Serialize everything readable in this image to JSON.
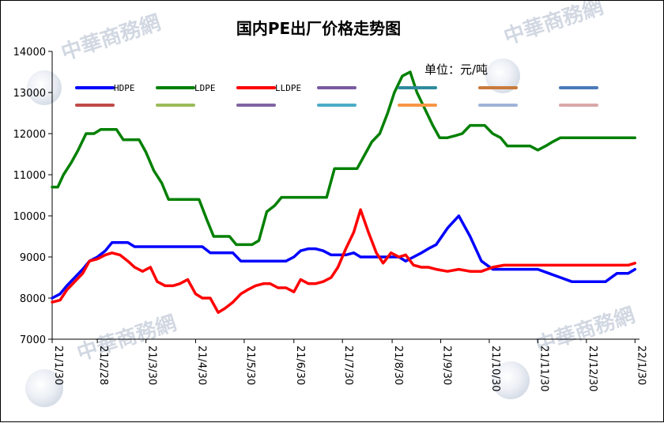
{
  "chart_data": {
    "type": "line",
    "title": "国内PE出厂价格走势图",
    "unit_label": "单位：元/吨",
    "ylim": [
      7000,
      14000
    ],
    "yticks": [
      7000,
      8000,
      9000,
      10000,
      11000,
      12000,
      13000,
      14000
    ],
    "xlim": [
      0,
      52
    ],
    "x_tick_labels": [
      {
        "label": "21/1/30",
        "x": 0
      },
      {
        "label": "21/2/28",
        "x": 4
      },
      {
        "label": "21/3/30",
        "x": 8.3
      },
      {
        "label": "21/4/30",
        "x": 12.7
      },
      {
        "label": "21/5/30",
        "x": 17
      },
      {
        "label": "21/6/30",
        "x": 21.4
      },
      {
        "label": "21/7/30",
        "x": 25.7
      },
      {
        "label": "21/8/30",
        "x": 30.1
      },
      {
        "label": "21/9/30",
        "x": 34.4
      },
      {
        "label": "21/10/30",
        "x": 38.7
      },
      {
        "label": "21/11/30",
        "x": 43
      },
      {
        "label": "21/12/30",
        "x": 47.3
      },
      {
        "label": "22/1/30",
        "x": 51.6
      }
    ],
    "grid": false,
    "legend_position": "top",
    "series": [
      {
        "name": "HDPE",
        "color": "#0000ff",
        "x": [
          0,
          0.7,
          1.3,
          2,
          2.7,
          3.3,
          4,
          4.7,
          5.3,
          6,
          6.7,
          7.3,
          8,
          8.7,
          9.3,
          10,
          10.7,
          11.3,
          12,
          12.7,
          13.3,
          14,
          14.7,
          15.3,
          16,
          16.7,
          17.3,
          18,
          18.7,
          19.3,
          20,
          20.7,
          21.4,
          22,
          22.7,
          23.3,
          24,
          24.7,
          25.3,
          26,
          26.7,
          27.3,
          28,
          28.7,
          29.3,
          30,
          30.7,
          31.3,
          32,
          32.7,
          33.3,
          34,
          35,
          36,
          37,
          38,
          39,
          40,
          41,
          42,
          43,
          44,
          45,
          46,
          47,
          48,
          49,
          50,
          51,
          51.6
        ],
        "y": [
          8000,
          8100,
          8300,
          8500,
          8700,
          8900,
          9000,
          9150,
          9350,
          9350,
          9350,
          9250,
          9250,
          9250,
          9250,
          9250,
          9250,
          9250,
          9250,
          9250,
          9250,
          9100,
          9100,
          9100,
          9100,
          8900,
          8900,
          8900,
          8900,
          8900,
          8900,
          8900,
          9000,
          9150,
          9200,
          9200,
          9150,
          9050,
          9050,
          9050,
          9100,
          9000,
          9000,
          9000,
          9000,
          9000,
          9000,
          8900,
          9000,
          9100,
          9200,
          9300,
          9700,
          10000,
          9500,
          8900,
          8700,
          8700,
          8700,
          8700,
          8700,
          8600,
          8500,
          8400,
          8400,
          8400,
          8400,
          8600,
          8600,
          8700
        ]
      },
      {
        "name": "LDPE",
        "color": "#008000",
        "x": [
          0,
          0.5,
          1,
          1.7,
          2.3,
          3,
          3.7,
          4.3,
          5,
          5.7,
          6.3,
          7,
          7.7,
          8.3,
          9,
          9.7,
          10.3,
          11,
          11.7,
          12.3,
          13,
          13.7,
          14.3,
          15,
          15.7,
          16.3,
          17,
          17.7,
          18.3,
          19,
          19.7,
          20.3,
          21,
          21.6,
          22.2,
          23,
          23.7,
          24.3,
          25,
          25.7,
          26.3,
          27,
          27.7,
          28.3,
          29,
          29.7,
          30.3,
          31,
          31.7,
          32.3,
          33,
          33.7,
          34.3,
          35,
          35.7,
          36.3,
          37,
          37.7,
          38.3,
          39,
          39.7,
          40.3,
          41,
          41.7,
          42.3,
          43,
          43.7,
          44.3,
          45,
          45.7,
          46.3,
          47,
          47.7,
          48.3,
          49,
          49.7,
          50.3,
          51,
          51.6
        ],
        "y": [
          10700,
          10700,
          11000,
          11300,
          11600,
          12000,
          12000,
          12100,
          12100,
          12100,
          11850,
          11850,
          11850,
          11550,
          11100,
          10800,
          10400,
          10400,
          10400,
          10400,
          10400,
          9900,
          9500,
          9500,
          9500,
          9300,
          9300,
          9300,
          9400,
          10100,
          10250,
          10450,
          10450,
          10450,
          10450,
          10450,
          10450,
          10450,
          11150,
          11150,
          11150,
          11150,
          11500,
          11800,
          12000,
          12500,
          13000,
          13400,
          13500,
          13000,
          12600,
          12200,
          11900,
          11900,
          11950,
          12000,
          12200,
          12200,
          12200,
          12000,
          11900,
          11700,
          11700,
          11700,
          11700,
          11600,
          11700,
          11800,
          11900,
          11900,
          11900,
          11900,
          11900,
          11900,
          11900,
          11900,
          11900,
          11900,
          11900
        ]
      },
      {
        "name": "LLDPE",
        "color": "#ff0000",
        "x": [
          0,
          0.7,
          1.3,
          2,
          2.7,
          3.3,
          4,
          4.7,
          5.3,
          6,
          6.7,
          7.3,
          8,
          8.7,
          9.3,
          10,
          10.7,
          11.3,
          12,
          12.7,
          13.3,
          14,
          14.7,
          15.3,
          16,
          16.7,
          17.3,
          18,
          18.7,
          19.3,
          20,
          20.7,
          21.4,
          22,
          22.7,
          23.3,
          24,
          24.7,
          25.3,
          26,
          26.7,
          27.3,
          28,
          28.7,
          29.3,
          30,
          30.7,
          31.3,
          32,
          32.7,
          33.3,
          34,
          35,
          36,
          37,
          38,
          39,
          40,
          41,
          42,
          43,
          44,
          45,
          46,
          47,
          48,
          49,
          50,
          51,
          51.6
        ],
        "y": [
          7900,
          7950,
          8200,
          8400,
          8600,
          8900,
          8950,
          9050,
          9100,
          9050,
          8900,
          8750,
          8650,
          8750,
          8400,
          8300,
          8300,
          8350,
          8450,
          8100,
          8000,
          8000,
          7650,
          7750,
          7900,
          8100,
          8200,
          8300,
          8350,
          8350,
          8250,
          8250,
          8150,
          8450,
          8350,
          8350,
          8400,
          8500,
          8750,
          9200,
          9600,
          10150,
          9600,
          9100,
          8850,
          9100,
          9000,
          9050,
          8800,
          8750,
          8750,
          8700,
          8650,
          8700,
          8650,
          8650,
          8750,
          8800,
          8800,
          8800,
          8800,
          8800,
          8800,
          8800,
          8800,
          8800,
          8800,
          8800,
          8800,
          8850
        ]
      }
    ],
    "legend": [
      {
        "name": "HDPE",
        "color": "#0000ff"
      },
      {
        "name": "LDPE",
        "color": "#008000"
      },
      {
        "name": "LLDPE",
        "color": "#ff0000"
      },
      {
        "name": "",
        "color": "#7a5aa0"
      },
      {
        "name": "",
        "color": "#2e8b9c"
      },
      {
        "name": "",
        "color": "#c87a3c"
      },
      {
        "name": "",
        "color": "#4a7ab8"
      },
      {
        "name": "",
        "color": "#c04a48"
      },
      {
        "name": "",
        "color": "#9bbb59"
      },
      {
        "name": "",
        "color": "#8064a2"
      },
      {
        "name": "",
        "color": "#4bacc6"
      },
      {
        "name": "",
        "color": "#f79646"
      },
      {
        "name": "",
        "color": "#a0b4d8"
      },
      {
        "name": "",
        "color": "#d9a8aa"
      }
    ],
    "watermark": "中華商務網"
  }
}
